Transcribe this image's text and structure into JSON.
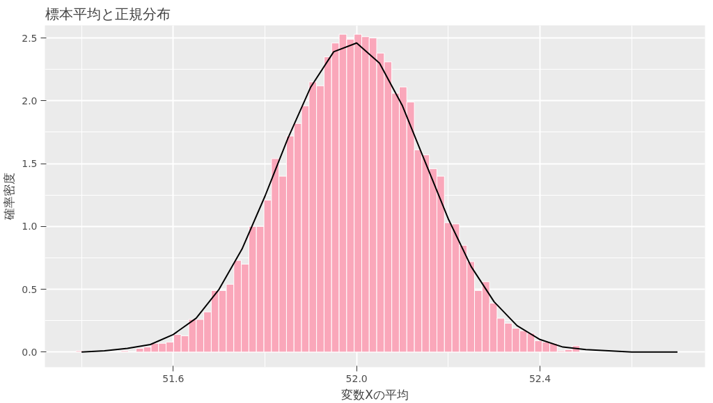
{
  "chart_data": {
    "type": "histogram",
    "title": "標本平均と正規分布",
    "xlabel": "変数Xの平均",
    "ylabel": "確率密度",
    "xlim": [
      51.32,
      52.76
    ],
    "xticks": [
      51.6,
      {
        "value": 52,
        "label": "52.0"
      },
      52.4
    ],
    "ylim": [
      -0.12,
      2.6
    ],
    "yticks": [
      {
        "value": 0,
        "label": "0.0"
      },
      0.5,
      {
        "value": 1,
        "label": "1.0"
      },
      1.5,
      {
        "value": 2,
        "label": "2.0"
      },
      2.5
    ],
    "grid": true,
    "series": [
      {
        "color": "#faa7ba",
        "bins": [
          51.3875,
          51.4039,
          51.4203,
          51.4367,
          51.4531,
          51.4696,
          51.486,
          51.5024,
          51.5188,
          51.5352,
          51.5516,
          51.568,
          51.5844,
          51.6008,
          51.6172,
          51.6337,
          51.6501,
          51.6665,
          51.6829,
          51.6993,
          51.7157,
          51.7321,
          51.7485,
          51.7649,
          51.7813,
          51.7978,
          51.8142,
          51.8306,
          51.847,
          51.8634,
          51.8798,
          51.8962,
          51.9126,
          51.929,
          51.9454,
          51.9619,
          51.9783,
          51.9947,
          52.0111,
          52.0275,
          52.0439,
          52.0603,
          52.0767,
          52.0931,
          52.1095,
          52.126,
          52.1424,
          52.1588,
          52.1752,
          52.1916,
          52.208,
          52.2244,
          52.2408,
          52.2572,
          52.2736,
          52.2901,
          52.3065,
          52.3229,
          52.3393,
          52.3557,
          52.3721,
          52.3885,
          52.4049,
          52.4213,
          52.4377,
          52.4542,
          52.4706,
          52.487
        ],
        "values": [
          0.01,
          null,
          null,
          null,
          null,
          null,
          0.01,
          null,
          0.03,
          0.04,
          0.07,
          0.07,
          0.08,
          0.14,
          0.13,
          0.26,
          0.26,
          0.32,
          0.49,
          0.49,
          0.54,
          0.73,
          0.7,
          1.0,
          1.0,
          1.21,
          1.54,
          1.4,
          1.72,
          1.82,
          1.96,
          2.15,
          2.12,
          2.35,
          2.46,
          2.53,
          2.49,
          2.53,
          2.51,
          2.5,
          2.38,
          2.31,
          2.06,
          2.11,
          1.99,
          1.61,
          1.57,
          1.46,
          1.4,
          1.03,
          1.02,
          0.85,
          0.72,
          0.49,
          0.56,
          0.39,
          0.27,
          0.23,
          0.19,
          0.17,
          0.15,
          0.09,
          0.08,
          0.07,
          0.01,
          0.02,
          0.05
        ]
      },
      {
        "type": "line",
        "color": "#000000",
        "x": [
          51.4,
          51.45,
          51.5,
          51.55,
          51.6,
          51.65,
          51.7,
          51.75,
          51.8,
          51.85,
          51.9,
          51.95,
          52.0,
          52.05,
          52.1,
          52.15,
          52.2,
          52.25,
          52.3,
          52.35,
          52.4,
          52.45,
          52.5,
          52.55,
          52.6,
          52.65,
          52.7
        ],
        "values": [
          0.0,
          0.01,
          0.03,
          0.06,
          0.14,
          0.27,
          0.5,
          0.82,
          1.24,
          1.7,
          2.11,
          2.39,
          2.46,
          2.3,
          1.96,
          1.51,
          1.06,
          0.68,
          0.4,
          0.21,
          0.1,
          0.04,
          0.02,
          0.01,
          0.0,
          0.0,
          0.0
        ]
      }
    ]
  }
}
